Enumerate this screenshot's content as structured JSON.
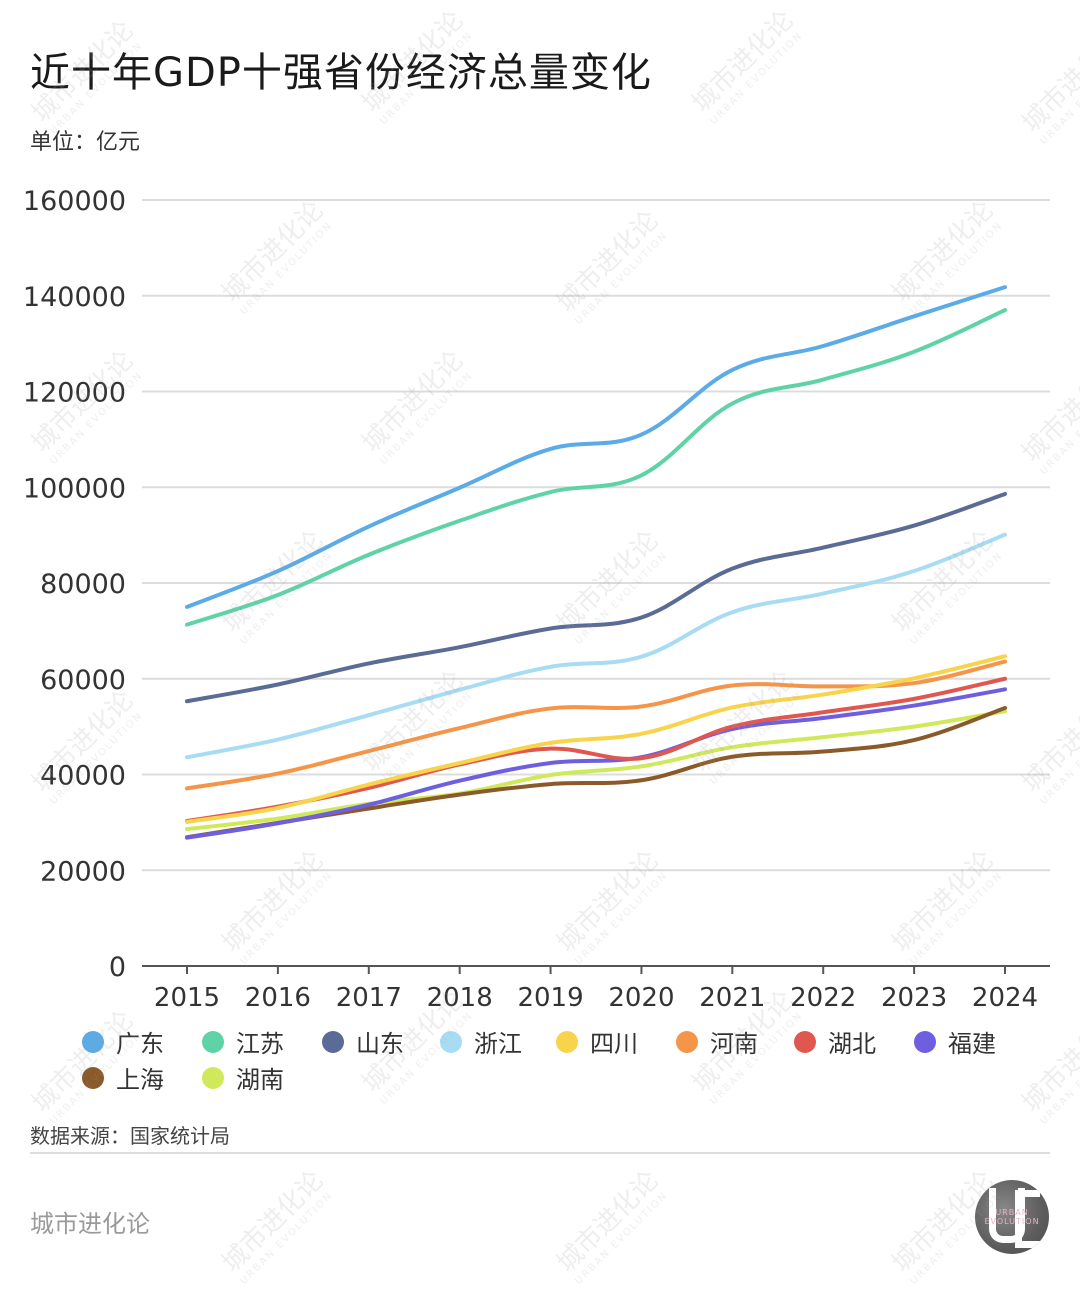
{
  "title": "近十年GDP十强省份经济总量变化",
  "unit_label": "单位：亿元",
  "source_label": "数据来源：国家统计局",
  "brand_label": "城市进化论",
  "logo_text": "URBAN EVOLUTION",
  "watermark_text": "城市进化论",
  "watermark_sub": "URBAN EVOLUTION",
  "chart_data": {
    "type": "line",
    "title": "近十年GDP十强省份经济总量变化",
    "xlabel": "",
    "ylabel": "单位：亿元",
    "x": [
      "2015",
      "2016",
      "2017",
      "2018",
      "2019",
      "2020",
      "2021",
      "2022",
      "2023",
      "2024"
    ],
    "ylim": [
      0,
      160000
    ],
    "yticks": [
      "0",
      "20000",
      "40000",
      "60000",
      "80000",
      "100000",
      "120000",
      "140000",
      "160000"
    ],
    "grid": true,
    "legend_position": "bottom",
    "series": [
      {
        "name": "广东",
        "color": "#5aabe6",
        "values": [
          75000,
          82500,
          91800,
          99900,
          108000,
          111000,
          124500,
          129500,
          135700,
          141800
        ]
      },
      {
        "name": "江苏",
        "color": "#5fd3a6",
        "values": [
          71300,
          77500,
          85900,
          93000,
          99000,
          102500,
          117500,
          122500,
          128300,
          137000
        ]
      },
      {
        "name": "山东",
        "color": "#5a6b96",
        "values": [
          55300,
          58800,
          63200,
          66600,
          70500,
          72800,
          83000,
          87400,
          92000,
          98600
        ]
      },
      {
        "name": "浙江",
        "color": "#a8dcf5",
        "values": [
          43600,
          47300,
          52400,
          57700,
          62500,
          64600,
          73900,
          77800,
          82500,
          90100
        ]
      },
      {
        "name": "四川",
        "color": "#f7d44c",
        "values": [
          30100,
          33000,
          37900,
          42400,
          46600,
          48500,
          54000,
          56700,
          60100,
          64700
        ]
      },
      {
        "name": "河南",
        "color": "#f5954a",
        "values": [
          37100,
          40200,
          44900,
          49700,
          53800,
          54200,
          58600,
          58400,
          59100,
          63600
        ]
      },
      {
        "name": "湖北",
        "color": "#e0574f",
        "values": [
          30300,
          33300,
          37200,
          42100,
          45400,
          43400,
          50000,
          53000,
          55800,
          60000
        ]
      },
      {
        "name": "福建",
        "color": "#6e5fe0",
        "values": [
          26800,
          29800,
          33700,
          38700,
          42400,
          43600,
          49500,
          51800,
          54400,
          57800
        ]
      },
      {
        "name": "上海",
        "color": "#8b5a2b",
        "values": [
          26900,
          29900,
          32900,
          35800,
          38000,
          38800,
          43700,
          44800,
          47200,
          53900
        ]
      },
      {
        "name": "湖南",
        "color": "#cfe95a",
        "values": [
          28600,
          30800,
          33900,
          36000,
          39900,
          41700,
          45700,
          47800,
          50000,
          53200
        ]
      }
    ]
  }
}
